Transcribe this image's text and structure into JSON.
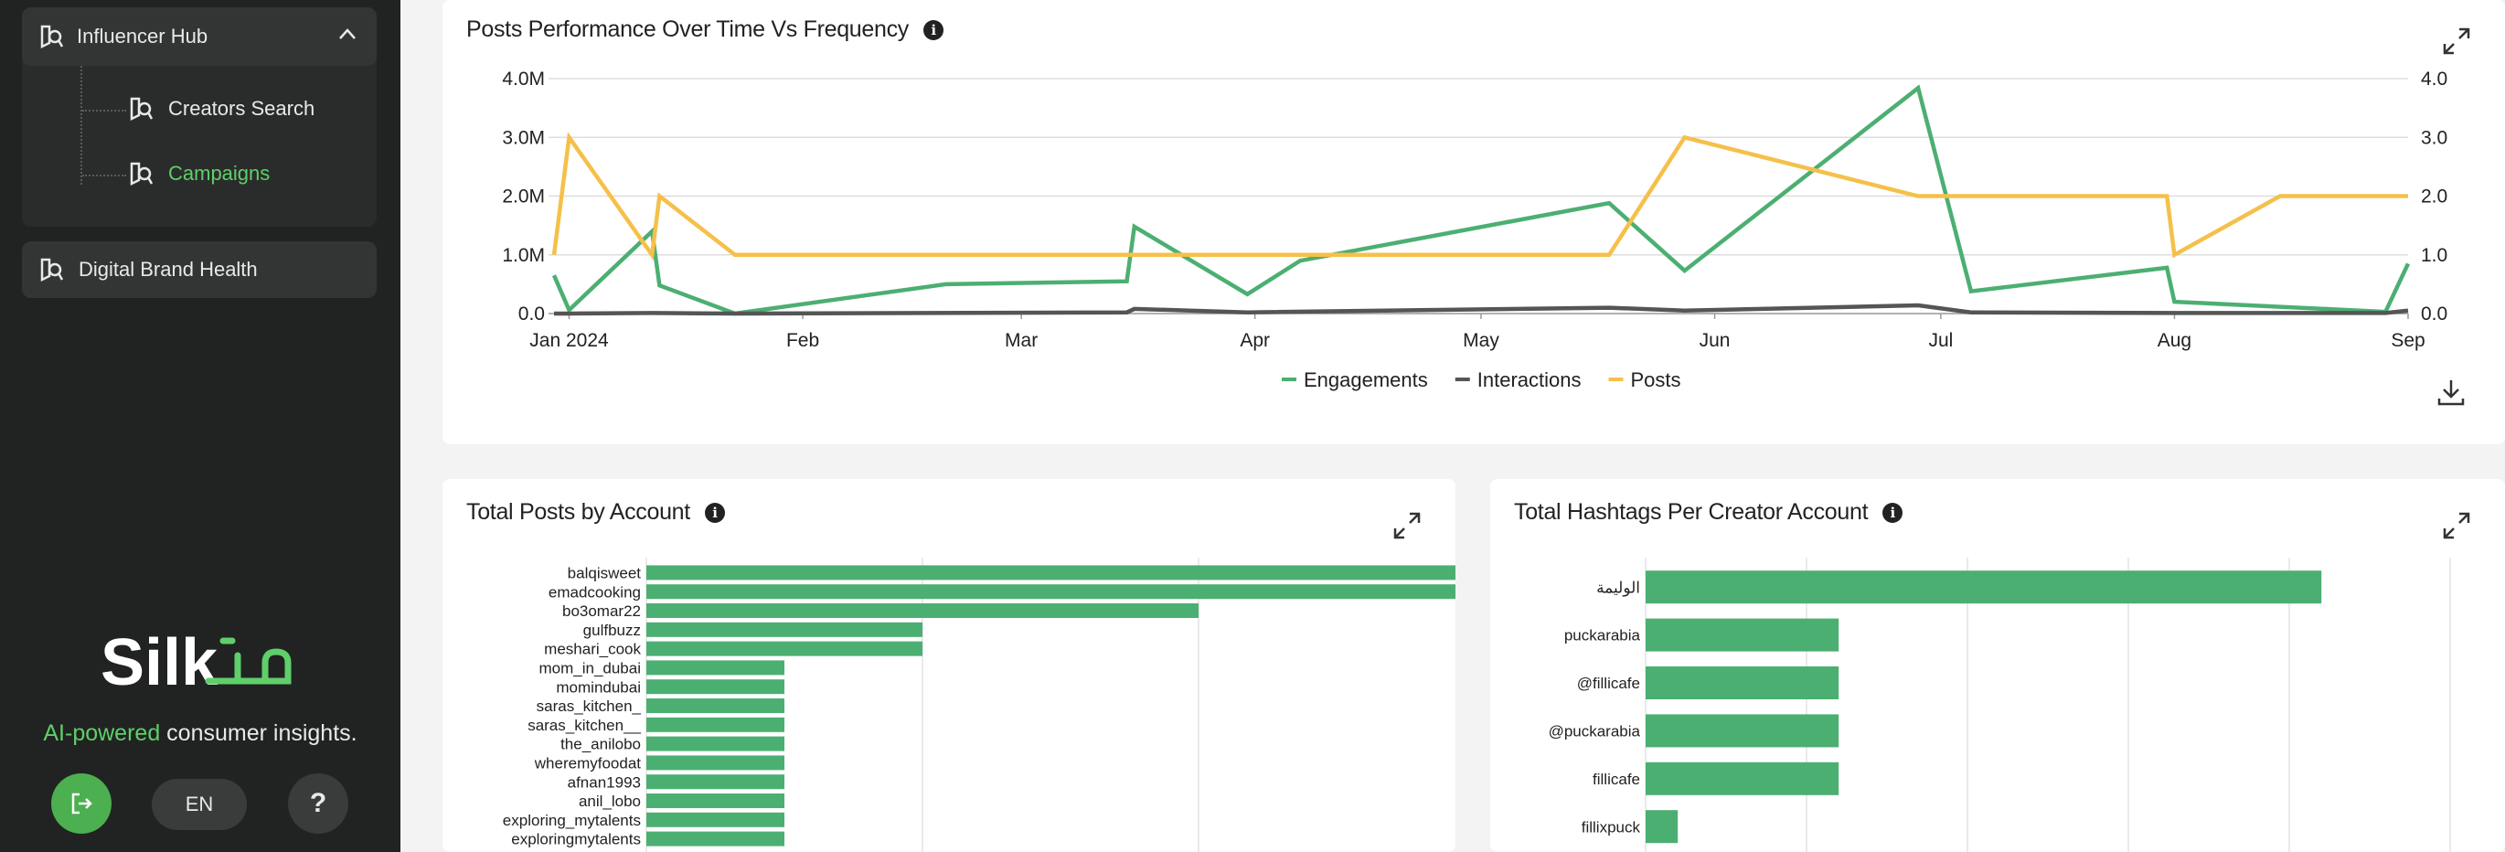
{
  "sidebar": {
    "group_title": "Influencer Hub",
    "items": [
      {
        "label": "Creators Search",
        "active": false
      },
      {
        "label": "Campaigns",
        "active": true
      }
    ],
    "single_title": "Digital Brand Health",
    "tagline_accent": "AI-powered",
    "tagline_rest": " consumer insights.",
    "lang_label": "EN",
    "help_label": "?",
    "logo_text": "Silk"
  },
  "cards": {
    "perf": {
      "title": "Posts Performance Over Time Vs Frequency"
    },
    "posts": {
      "title": "Total Posts by Account"
    },
    "hashtags": {
      "title": "Total Hashtags Per Creator Account"
    }
  },
  "chart_data": [
    {
      "type": "line",
      "title": "Posts Performance Over Time Vs Frequency",
      "x_ticks": [
        "Jan 2024",
        "Feb",
        "Mar",
        "Apr",
        "May",
        "Jun",
        "Jul",
        "Aug",
        "Sep"
      ],
      "x_tick_dates": [
        "2024-01-01",
        "2024-02-01",
        "2024-03-01",
        "2024-04-01",
        "2024-05-01",
        "2024-06-01",
        "2024-07-01",
        "2024-08-01",
        "2024-09-01"
      ],
      "y_left_ticks": [
        "0.0",
        "1.0M",
        "2.0M",
        "3.0M",
        "4.0M"
      ],
      "y_right_ticks": [
        "0.0",
        "1.0",
        "2.0",
        "3.0",
        "4.0"
      ],
      "y_left_range": [
        0,
        4000000
      ],
      "y_right_range": [
        0,
        4
      ],
      "x_range": [
        "2023-12-30",
        "2024-09-01"
      ],
      "legend_position": "bottom",
      "grid": true,
      "series": [
        {
          "name": "Engagements",
          "axis": "left",
          "color": "#4caf72",
          "points": [
            [
              "2023-12-30",
              650000
            ],
            [
              "2024-01-01",
              60000
            ],
            [
              "2024-01-12",
              1400000
            ],
            [
              "2024-01-13",
              480000
            ],
            [
              "2024-01-23",
              0
            ],
            [
              "2024-02-20",
              500000
            ],
            [
              "2024-03-15",
              550000
            ],
            [
              "2024-03-16",
              1480000
            ],
            [
              "2024-03-31",
              330000
            ],
            [
              "2024-04-07",
              900000
            ],
            [
              "2024-05-18",
              1880000
            ],
            [
              "2024-05-28",
              730000
            ],
            [
              "2024-06-28",
              3840000
            ],
            [
              "2024-07-05",
              380000
            ],
            [
              "2024-07-31",
              780000
            ],
            [
              "2024-08-01",
              200000
            ],
            [
              "2024-08-29",
              30000
            ],
            [
              "2024-09-01",
              850000
            ]
          ]
        },
        {
          "name": "Interactions",
          "axis": "left",
          "color": "#555555",
          "points": [
            [
              "2023-12-30",
              0
            ],
            [
              "2024-01-01",
              0
            ],
            [
              "2024-01-12",
              10000
            ],
            [
              "2024-01-23",
              0
            ],
            [
              "2024-03-15",
              20000
            ],
            [
              "2024-03-16",
              80000
            ],
            [
              "2024-03-31",
              20000
            ],
            [
              "2024-05-18",
              100000
            ],
            [
              "2024-05-28",
              50000
            ],
            [
              "2024-06-28",
              140000
            ],
            [
              "2024-07-05",
              20000
            ],
            [
              "2024-08-01",
              10000
            ],
            [
              "2024-08-29",
              10000
            ],
            [
              "2024-09-01",
              50000
            ]
          ]
        },
        {
          "name": "Posts",
          "axis": "right",
          "color": "#f5c04a",
          "points": [
            [
              "2023-12-30",
              1
            ],
            [
              "2024-01-01",
              3
            ],
            [
              "2024-01-12",
              1
            ],
            [
              "2024-01-13",
              2
            ],
            [
              "2024-01-23",
              1
            ],
            [
              "2024-03-15",
              1
            ],
            [
              "2024-05-18",
              1
            ],
            [
              "2024-05-28",
              3
            ],
            [
              "2024-06-28",
              2
            ],
            [
              "2024-07-31",
              2
            ],
            [
              "2024-08-01",
              1
            ],
            [
              "2024-08-15",
              2
            ],
            [
              "2024-09-01",
              2
            ]
          ]
        }
      ]
    },
    {
      "type": "bar",
      "orientation": "horizontal",
      "title": "Total Posts by Account",
      "categories": [
        "balqisweet",
        "emadcooking",
        "bo3omar22",
        "gulfbuzz",
        "meshari_cook",
        "mom_in_dubai",
        "momindubai",
        "saras_kitchen_",
        "saras_kitchen__",
        "the_anilobo",
        "wheremyfoodat",
        "afnan1993",
        "anil_lobo",
        "exploring_mytalents",
        "exploringmytalents"
      ],
      "values": [
        6,
        6,
        4,
        2,
        2,
        1,
        1,
        1,
        1,
        1,
        1,
        1,
        1,
        1,
        1
      ],
      "x_range": [
        0,
        8
      ],
      "grid": true,
      "color": "#4caf72"
    },
    {
      "type": "bar",
      "orientation": "horizontal",
      "title": "Total Hashtags Per Creator Account",
      "categories": [
        "الوليمة",
        "puckarabia",
        "@fillicafe",
        "@puckarabia",
        "fillicafe",
        "fillixpuck"
      ],
      "values": [
        21,
        6,
        6,
        6,
        6,
        1
      ],
      "x_range": [
        0,
        25
      ],
      "grid": true,
      "color": "#4caf72"
    }
  ]
}
